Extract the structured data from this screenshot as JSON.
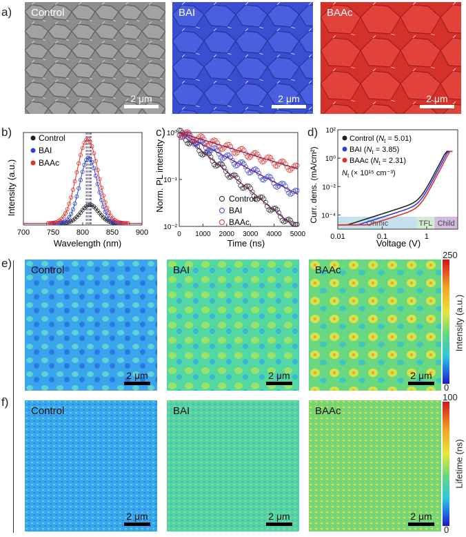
{
  "panel_labels": {
    "a": "a)",
    "b": "b)",
    "c": "c)",
    "d": "d)",
    "e": "e)",
    "f": "f)"
  },
  "panel_a": {
    "images": [
      {
        "label": "Control",
        "scale": "2 μm",
        "color": "#8a8a8a"
      },
      {
        "label": "BAI",
        "scale": "2 μm",
        "color": "#3d50d8"
      },
      {
        "label": "BAAc",
        "scale": "2 μm",
        "color": "#d8302a"
      }
    ]
  },
  "panel_e": {
    "images": [
      {
        "label": "Control",
        "scale": "2 μm"
      },
      {
        "label": "BAI",
        "scale": "2 μm"
      },
      {
        "label": "BAAc",
        "scale": "2 μm"
      }
    ],
    "colorbar": {
      "max": "250",
      "min": "0",
      "title": "Intensity (a.u.)"
    }
  },
  "panel_f": {
    "images": [
      {
        "label": "Control",
        "scale": "2 μm"
      },
      {
        "label": "BAI",
        "scale": "2 μm"
      },
      {
        "label": "BAAc",
        "scale": "2 μm"
      }
    ],
    "colorbar": {
      "max": "100",
      "min": "0",
      "title": "Lifetime (ns)"
    }
  },
  "chart_data": [
    {
      "panel": "b",
      "type": "scatter",
      "xlabel": "Wavelength (nm)",
      "ylabel": "Intensity (a.u.)",
      "xlim": [
        700,
        900
      ],
      "xticks": [
        "700",
        "750",
        "800",
        "850",
        "900"
      ],
      "series": [
        {
          "name": "Control",
          "color": "#222222",
          "peak": 812,
          "amp": 0.22,
          "width": 15
        },
        {
          "name": "BAI",
          "color": "#2d3fd6",
          "peak": 810,
          "amp": 0.78,
          "width": 15
        },
        {
          "name": "BAAc",
          "color": "#e0302a",
          "peak": 808,
          "amp": 1.0,
          "width": 18
        }
      ],
      "peak_lines": [
        806,
        809,
        812,
        814
      ],
      "ylim": [
        0,
        1.1
      ]
    },
    {
      "panel": "c",
      "type": "scatter",
      "xlabel": "Time (ns)",
      "ylabel": "Norm. PL  intensity",
      "xlim": [
        0,
        5000
      ],
      "xticks": [
        "0",
        "1000",
        "2000",
        "3000",
        "4000",
        "5000"
      ],
      "ylog": true,
      "ylim": [
        0.01,
        1
      ],
      "yticks": [
        "10⁻²",
        "10⁻¹",
        "10⁰"
      ],
      "series": [
        {
          "name": "Control",
          "color": "#222222",
          "tau": 1050
        },
        {
          "name": "BAI",
          "color": "#2d3fd6",
          "tau": 1650
        },
        {
          "name": "BAAc",
          "color": "#e0302a",
          "tau": 2800
        }
      ]
    },
    {
      "panel": "d",
      "type": "scatter",
      "xlabel": "Voltage (V)",
      "ylabel": "Curr. dens. (mA/cm²)",
      "xlog": true,
      "ylog": true,
      "xlim": [
        0.01,
        5
      ],
      "ylim": [
        1e-05,
        100
      ],
      "xticks": [
        "0.01",
        "0.1",
        "1"
      ],
      "yticks": [
        "10⁻⁴",
        "10⁻²",
        "10⁰",
        "10²"
      ],
      "legend": [
        {
          "name": "Control",
          "nt_label": "N",
          "nt_sub": "t",
          "nt_value": " = 5.01)",
          "color": "#222222"
        },
        {
          "name": "BAI",
          "nt_label": "N",
          "nt_sub": "t",
          "nt_value": " = 3.85)",
          "color": "#2d3fd6"
        },
        {
          "name": "BAAc",
          "nt_label": "N",
          "nt_sub": "t",
          "nt_value": " = 2.31)",
          "color": "#e0302a"
        }
      ],
      "nt_unit_prefix": "N",
      "nt_unit_sub": "t",
      "nt_unit": " (× 10¹⁵ cm⁻³)",
      "regions": [
        {
          "name": "Ohmic",
          "color": "#b9d8e8"
        },
        {
          "name": "TFL",
          "color": "#c8e8c8"
        },
        {
          "name": "Child",
          "color": "#c9a9d9"
        }
      ]
    }
  ]
}
